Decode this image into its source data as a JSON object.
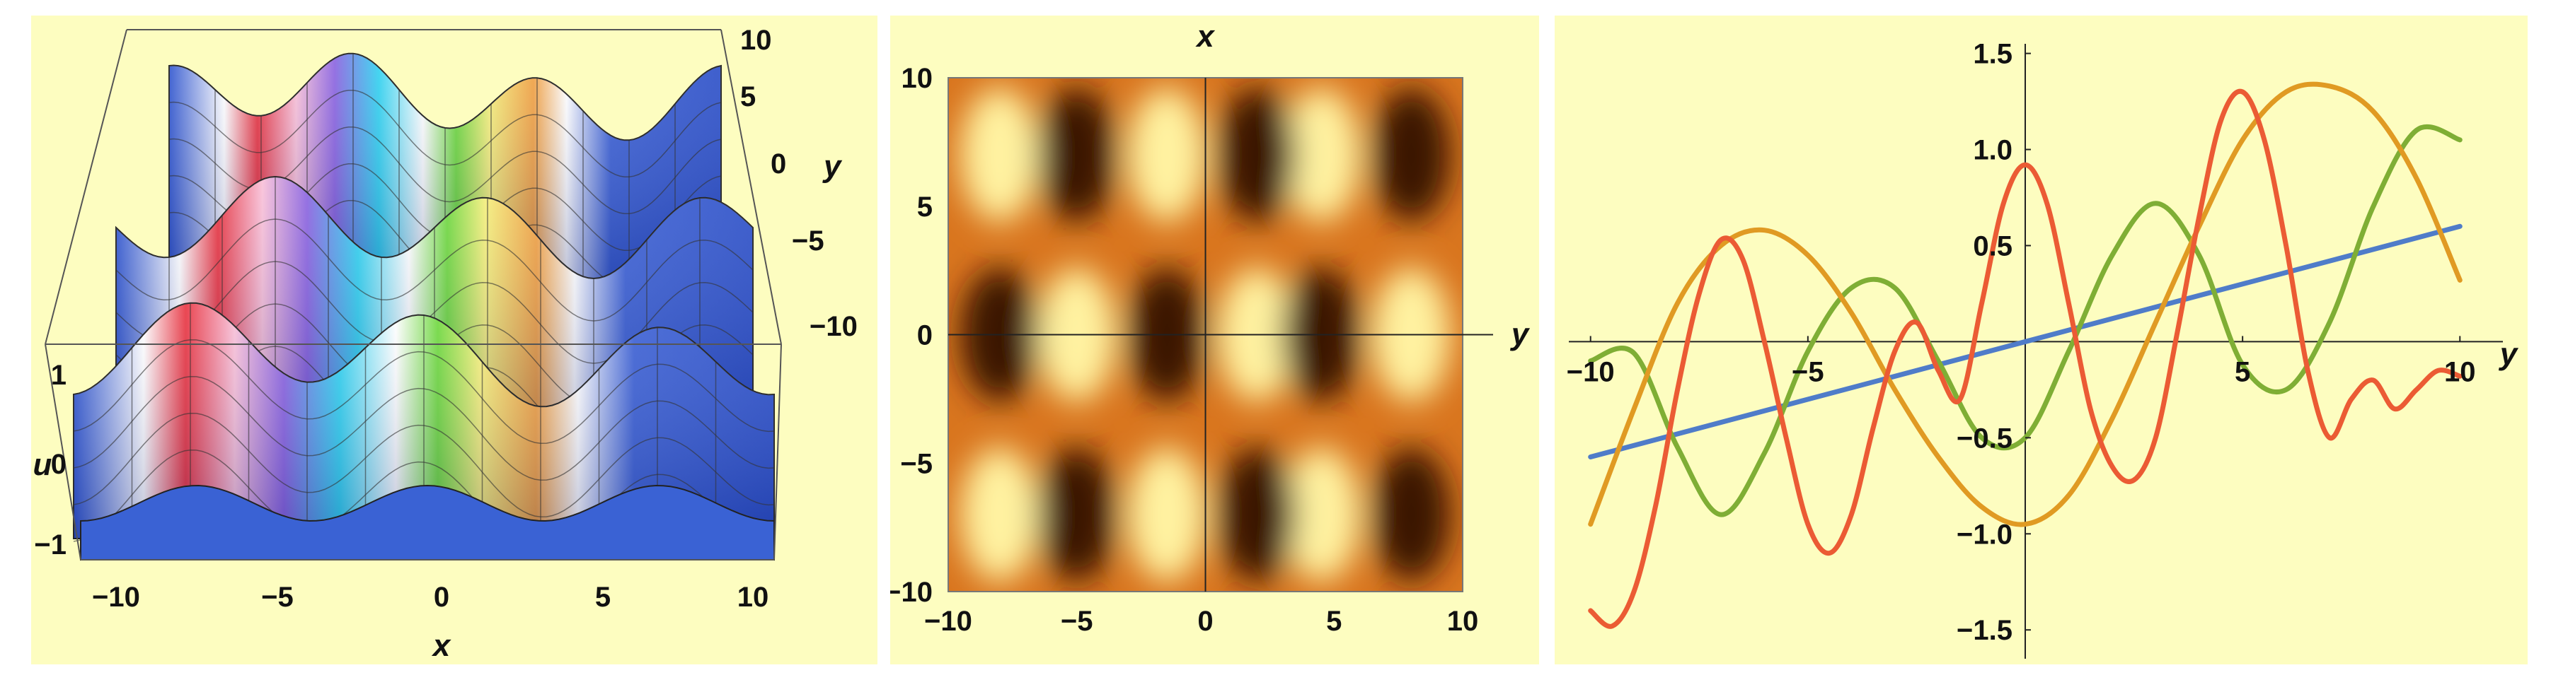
{
  "colors": {
    "background": "#fdfdc0",
    "surface_blue": "#3b63d6",
    "density_low": "#3a1400",
    "density_high": "#fff2a0",
    "line_blue": "#4f7cc9",
    "line_green": "#7fae35",
    "line_orange": "#e09a23",
    "line_red": "#eb5b34"
  },
  "chart_data": [
    {
      "type": "surface3d",
      "description_of": "u(x,y) periodic surface",
      "xlabel": "x",
      "ylabel": "y",
      "zlabel": "u",
      "x_ticks": [
        "−10",
        "−5",
        "0",
        "5",
        "10"
      ],
      "y_ticks": [
        "10",
        "5",
        "0",
        "−5",
        "−10"
      ],
      "z_ticks": [
        "1",
        "0",
        "−1"
      ],
      "xlim": [
        -10,
        10
      ],
      "ylim": [
        -10,
        10
      ],
      "zlim": [
        -1.3,
        1.3
      ],
      "colored_bands_x": [
        -4.5,
        -1.5,
        1.5,
        4.5
      ]
    },
    {
      "type": "heatmap",
      "xlabel": "y",
      "ylabel": "x",
      "x_ticks": [
        "−10",
        "−5",
        "0",
        "5",
        "10"
      ],
      "y_ticks": [
        "10",
        "5",
        "0",
        "−5",
        "−10"
      ],
      "xlim": [
        -10,
        10
      ],
      "ylim": [
        -10,
        10
      ]
    },
    {
      "type": "line",
      "xlabel": "y",
      "ylabel": "",
      "xlim": [
        -10.5,
        10.5
      ],
      "ylim": [
        -1.65,
        1.55
      ],
      "x_ticks": [
        "−10",
        "−5",
        "5",
        "10"
      ],
      "y_ticks": [
        "1.5",
        "1.0",
        "0.5",
        "−0.5",
        "−1.0",
        "−1.5"
      ],
      "series": [
        {
          "color": "blue",
          "x": [
            -10,
            10
          ],
          "values": [
            -0.6,
            0.6
          ]
        },
        {
          "color": "green",
          "x": [
            -10,
            -9,
            -8,
            -7,
            -6,
            -5,
            -4,
            -3,
            -2,
            -1,
            0,
            1,
            2,
            3,
            4,
            5,
            6,
            7,
            8,
            9,
            10
          ],
          "values": [
            -0.1,
            -0.06,
            -0.55,
            -0.9,
            -0.58,
            -0.05,
            0.28,
            0.28,
            -0.1,
            -0.5,
            -0.5,
            -0.05,
            0.45,
            0.72,
            0.45,
            -0.12,
            -0.25,
            0.1,
            0.7,
            1.1,
            1.05
          ]
        },
        {
          "color": "orange",
          "x": [
            -10,
            -9,
            -8,
            -7,
            -6,
            -5,
            -4,
            -3,
            -2,
            -1,
            0,
            1,
            2,
            3,
            4,
            5,
            6,
            7,
            8,
            9,
            10
          ],
          "values": [
            -0.95,
            -0.35,
            0.2,
            0.5,
            0.58,
            0.45,
            0.15,
            -0.25,
            -0.6,
            -0.86,
            -0.95,
            -0.8,
            -0.4,
            0.1,
            0.6,
            1.05,
            1.3,
            1.33,
            1.2,
            0.85,
            0.32
          ]
        },
        {
          "color": "red",
          "x": [
            -10,
            -9.5,
            -9,
            -8.5,
            -8,
            -7.5,
            -7,
            -6.5,
            -6,
            -5.5,
            -5,
            -4.5,
            -4,
            -3.5,
            -3,
            -2.5,
            -2,
            -1.5,
            -1,
            -0.5,
            0,
            0.5,
            1,
            1.5,
            2,
            2.5,
            3,
            3.5,
            4,
            4.5,
            5,
            5.5,
            6,
            6.5,
            7,
            7.5,
            8,
            8.5,
            9,
            9.5,
            10
          ],
          "values": [
            -1.4,
            -1.48,
            -1.3,
            -0.85,
            -0.25,
            0.25,
            0.53,
            0.43,
            0.0,
            -0.5,
            -0.95,
            -1.1,
            -0.9,
            -0.45,
            -0.05,
            0.1,
            -0.15,
            -0.3,
            0.2,
            0.72,
            0.92,
            0.72,
            0.2,
            -0.35,
            -0.65,
            -0.72,
            -0.5,
            0.05,
            0.65,
            1.15,
            1.3,
            1.05,
            0.5,
            -0.15,
            -0.5,
            -0.3,
            -0.2,
            -0.35,
            -0.25,
            -0.15,
            -0.18
          ]
        }
      ]
    }
  ]
}
